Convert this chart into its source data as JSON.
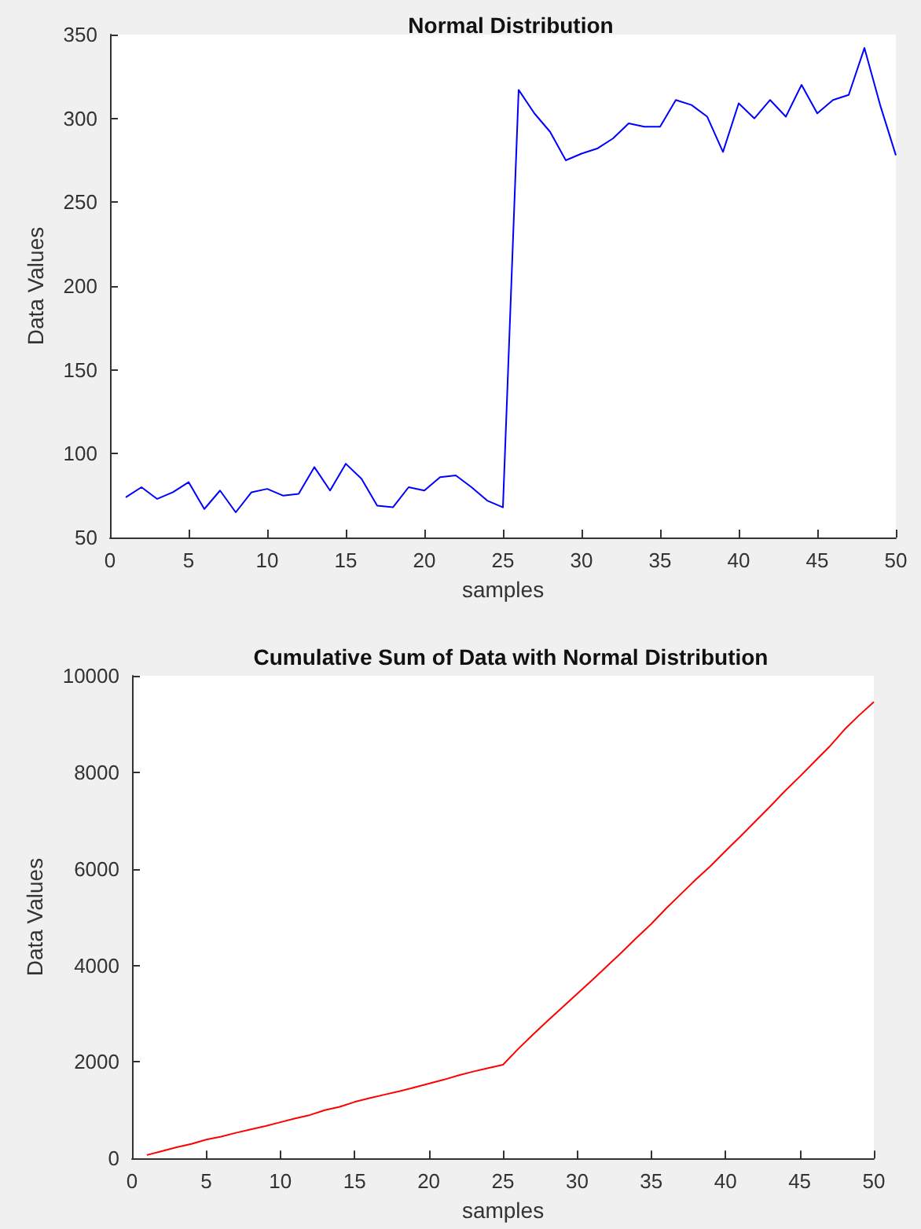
{
  "chart_data": [
    {
      "type": "line",
      "title": "Normal Distribution",
      "xlabel": "samples",
      "ylabel": "Data Values",
      "x": [
        1,
        2,
        3,
        4,
        5,
        6,
        7,
        8,
        9,
        10,
        11,
        12,
        13,
        14,
        15,
        16,
        17,
        18,
        19,
        20,
        21,
        22,
        23,
        24,
        25,
        26,
        27,
        28,
        29,
        30,
        31,
        32,
        33,
        34,
        35,
        36,
        37,
        38,
        39,
        40,
        41,
        42,
        43,
        44,
        45,
        46,
        47,
        48,
        49,
        50
      ],
      "series": [
        {
          "color": "#0000ff",
          "values": [
            74,
            80,
            73,
            77,
            83,
            67,
            78,
            65,
            77,
            79,
            75,
            76,
            92,
            78,
            94,
            85,
            69,
            68,
            80,
            78,
            86,
            87,
            80,
            72,
            68,
            317,
            303,
            292,
            275,
            279,
            282,
            288,
            297,
            295,
            295,
            311,
            308,
            301,
            280,
            309,
            300,
            311,
            301,
            320,
            303,
            311,
            314,
            342,
            308,
            278
          ]
        }
      ],
      "xlim": [
        0,
        50
      ],
      "xticks": [
        0,
        5,
        10,
        15,
        20,
        25,
        30,
        35,
        40,
        45,
        50
      ],
      "ylim": [
        50,
        350
      ],
      "yticks": [
        50,
        100,
        150,
        200,
        250,
        300,
        350
      ],
      "grid": false,
      "marker": "none",
      "line_style": "solid"
    },
    {
      "type": "line",
      "title": "Cumulative Sum of Data with Normal Distribution",
      "xlabel": "samples",
      "ylabel": "Data Values",
      "x": [
        1,
        2,
        3,
        4,
        5,
        6,
        7,
        8,
        9,
        10,
        11,
        12,
        13,
        14,
        15,
        16,
        17,
        18,
        19,
        20,
        21,
        22,
        23,
        24,
        25,
        26,
        27,
        28,
        29,
        30,
        31,
        32,
        33,
        34,
        35,
        36,
        37,
        38,
        39,
        40,
        41,
        42,
        43,
        44,
        45,
        46,
        47,
        48,
        49,
        50
      ],
      "series": [
        {
          "color": "#ff0000",
          "values": [
            70,
            150,
            230,
            300,
            390,
            450,
            530,
            600,
            670,
            750,
            830,
            900,
            1000,
            1070,
            1170,
            1250,
            1320,
            1390,
            1470,
            1550,
            1630,
            1720,
            1800,
            1870,
            1940,
            2260,
            2560,
            2850,
            3130,
            3410,
            3690,
            3980,
            4270,
            4570,
            4860,
            5180,
            5480,
            5780,
            6060,
            6370,
            6670,
            6980,
            7290,
            7610,
            7910,
            8220,
            8530,
            8880,
            9180,
            9460
          ]
        }
      ],
      "xlim": [
        0,
        50
      ],
      "xticks": [
        0,
        5,
        10,
        15,
        20,
        25,
        30,
        35,
        40,
        45,
        50
      ],
      "ylim": [
        0,
        10000
      ],
      "yticks": [
        0,
        2000,
        4000,
        6000,
        8000,
        10000
      ],
      "grid": false,
      "marker": "none",
      "line_style": "solid"
    }
  ]
}
